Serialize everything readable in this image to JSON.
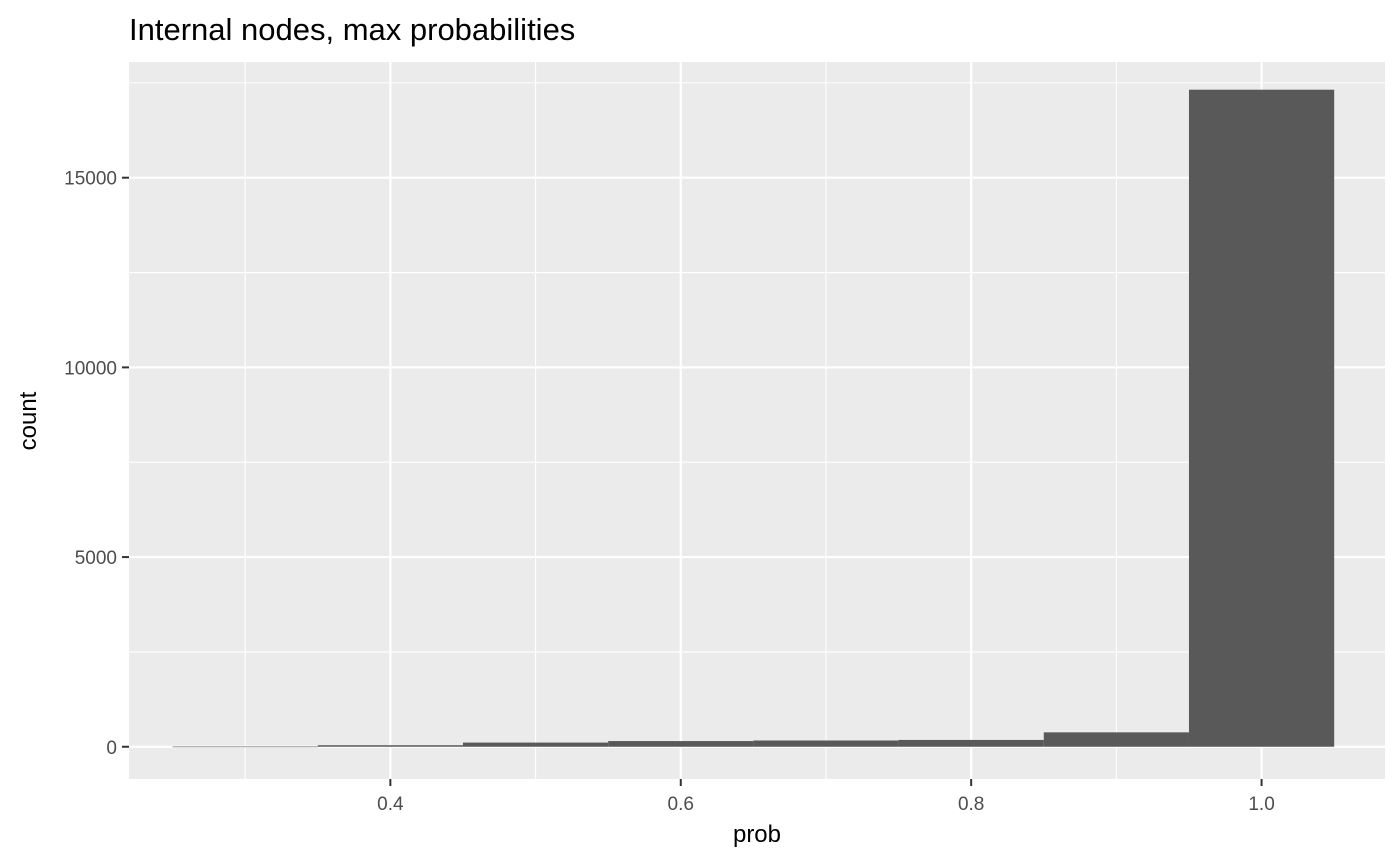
{
  "chart_data": {
    "type": "bar",
    "title": "Internal nodes, max probabilities",
    "xlabel": "prob",
    "ylabel": "count",
    "bin_width": 0.1,
    "bins": [
      {
        "x": 0.3,
        "count": 5
      },
      {
        "x": 0.4,
        "count": 40
      },
      {
        "x": 0.5,
        "count": 110
      },
      {
        "x": 0.6,
        "count": 150
      },
      {
        "x": 0.7,
        "count": 165
      },
      {
        "x": 0.8,
        "count": 180
      },
      {
        "x": 0.9,
        "count": 380
      },
      {
        "x": 1.0,
        "count": 17320
      }
    ],
    "xlim": [
      0.22,
      1.085
    ],
    "ylim": [
      -850,
      18050
    ],
    "x_ticks": [
      {
        "value": 0.4,
        "label": "0.4"
      },
      {
        "value": 0.6,
        "label": "0.6"
      },
      {
        "value": 0.8,
        "label": "0.8"
      },
      {
        "value": 1.0,
        "label": "1.0"
      }
    ],
    "x_minor": [
      0.3,
      0.5,
      0.7,
      0.9
    ],
    "y_ticks": [
      {
        "value": 0,
        "label": "0"
      },
      {
        "value": 5000,
        "label": "5000"
      },
      {
        "value": 10000,
        "label": "10000"
      },
      {
        "value": 15000,
        "label": "15000"
      }
    ],
    "y_minor": [
      2500,
      7500,
      12500,
      17500
    ],
    "grid": true,
    "legend": "none",
    "colors": {
      "panel": "#ebebeb",
      "gridline": "#ffffff",
      "bar": "#595959",
      "tick_text": "#4d4d4d"
    }
  }
}
